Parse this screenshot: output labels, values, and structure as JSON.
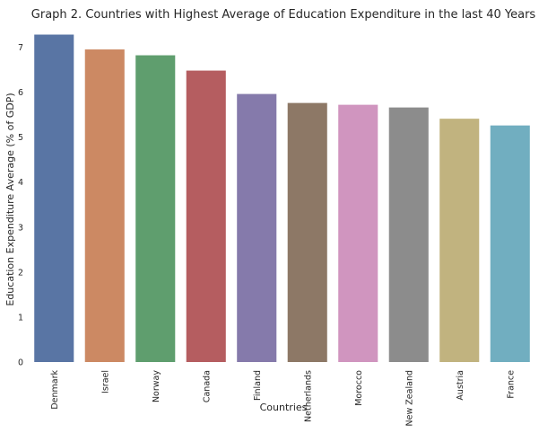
{
  "chart_data": {
    "type": "bar",
    "title": "Graph 2. Countries with Highest Average of Education Expenditure in the last 40 Years",
    "xlabel": "Countries",
    "ylabel": "Education Expenditure Average (% of GDP)",
    "categories": [
      "Denmark",
      "Israel",
      "Norway",
      "Canada",
      "Finland",
      "Netherlands",
      "Morocco",
      "New Zealand",
      "Austria",
      "France"
    ],
    "values": [
      7.28,
      6.95,
      6.82,
      6.48,
      5.96,
      5.76,
      5.72,
      5.66,
      5.41,
      5.26
    ],
    "colors": [
      "#5975a4",
      "#cc8963",
      "#5f9e6e",
      "#b55d60",
      "#857aab",
      "#8d7866",
      "#d095bf",
      "#8c8c8c",
      "#c1b37f",
      "#71aec0"
    ],
    "ylim": [
      0,
      7.45
    ],
    "yticks": [
      "0",
      "1",
      "2",
      "3",
      "4",
      "5",
      "6",
      "7"
    ],
    "grid": false,
    "legend": "none"
  }
}
